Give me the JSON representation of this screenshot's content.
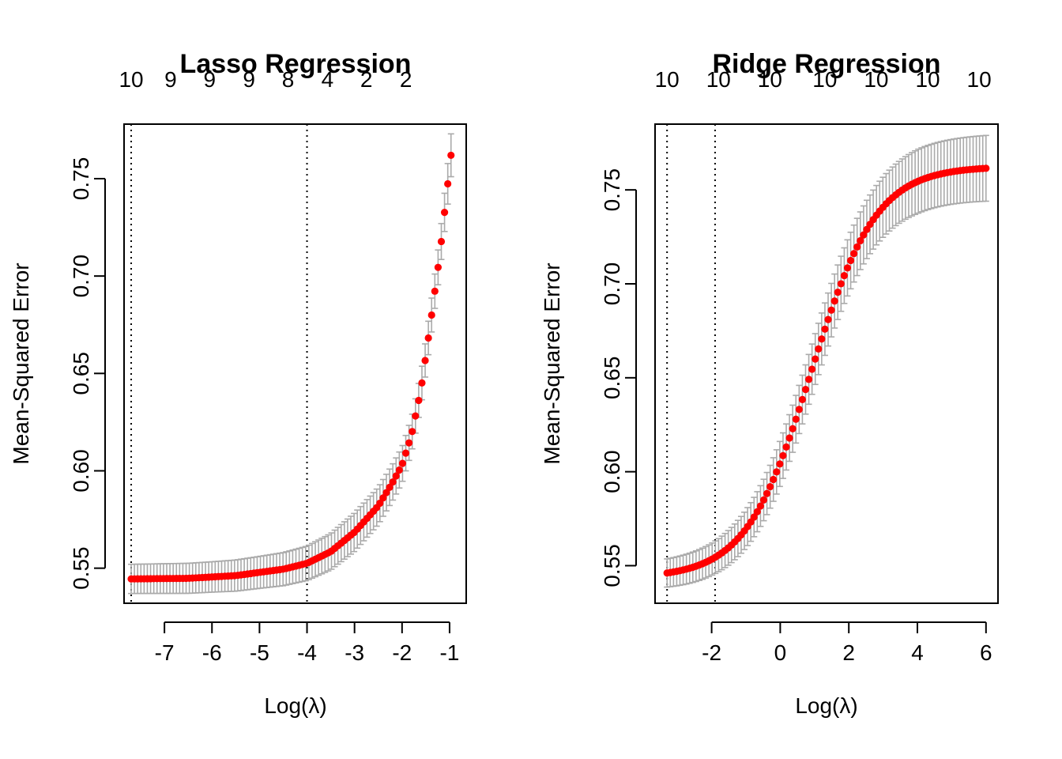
{
  "chart_data": [
    {
      "type": "scatter",
      "title": "Lasso Regression",
      "xlabel": "Log(λ)",
      "ylabel": "Mean-Squared Error",
      "xlim": [
        -7.85,
        -0.65
      ],
      "ylim": [
        0.532,
        0.778
      ],
      "x_ticks": [
        -7,
        -6,
        -5,
        -4,
        -3,
        -2,
        -1
      ],
      "y_ticks": [
        0.55,
        0.6,
        0.65,
        0.7,
        0.75
      ],
      "top_ticks": [
        {
          "x": -7.7,
          "label": "10"
        },
        {
          "x": -6.87,
          "label": "9"
        },
        {
          "x": -6.05,
          "label": "9"
        },
        {
          "x": -5.22,
          "label": "9"
        },
        {
          "x": -4.4,
          "label": "8"
        },
        {
          "x": -3.57,
          "label": "4"
        },
        {
          "x": -2.75,
          "label": "2"
        },
        {
          "x": -1.92,
          "label": "2"
        }
      ],
      "vlines": [
        -7.7,
        -4.0
      ],
      "points": {
        "x_start": -7.7,
        "x_end": -0.97,
        "count": 100
      },
      "curve_knots": [
        [
          -7.7,
          0.5445
        ],
        [
          -6.5,
          0.5448
        ],
        [
          -5.5,
          0.5462
        ],
        [
          -4.5,
          0.5495
        ],
        [
          -4.0,
          0.5525
        ],
        [
          -3.5,
          0.5585
        ],
        [
          -3.0,
          0.5685
        ],
        [
          -2.5,
          0.582
        ],
        [
          -2.2,
          0.594
        ],
        [
          -2.0,
          0.603
        ],
        [
          -1.8,
          0.6185
        ],
        [
          -1.6,
          0.642
        ],
        [
          -1.4,
          0.676
        ],
        [
          -1.2,
          0.712
        ],
        [
          -1.1,
          0.734
        ],
        [
          -0.97,
          0.762
        ]
      ],
      "error_knots": [
        [
          -7.7,
          0.0075
        ],
        [
          -6.0,
          0.0078
        ],
        [
          -5.0,
          0.0082
        ],
        [
          -4.0,
          0.0088
        ],
        [
          -3.0,
          0.0098
        ],
        [
          -2.0,
          0.0092
        ],
        [
          -1.5,
          0.0085
        ],
        [
          -1.2,
          0.009
        ],
        [
          -0.97,
          0.011
        ]
      ],
      "point_color": "#ff0000",
      "errorbar_color": "#aaaaaa"
    },
    {
      "type": "scatter",
      "title": "Ridge Regression",
      "xlabel": "Log(λ)",
      "ylabel": "Mean-Squared Error",
      "xlim": [
        -3.65,
        6.35
      ],
      "ylim": [
        0.53,
        0.785
      ],
      "x_ticks": [
        -2,
        0,
        2,
        4,
        6
      ],
      "y_ticks": [
        0.55,
        0.6,
        0.65,
        0.7,
        0.75
      ],
      "top_ticks": [
        {
          "x": -3.3,
          "label": "10"
        },
        {
          "x": -1.8,
          "label": "10"
        },
        {
          "x": -0.3,
          "label": "10"
        },
        {
          "x": 1.3,
          "label": "10"
        },
        {
          "x": 2.8,
          "label": "10"
        },
        {
          "x": 4.3,
          "label": "10"
        },
        {
          "x": 5.8,
          "label": "10"
        }
      ],
      "vlines": [
        -3.3,
        -1.9
      ],
      "points": {
        "x_start": -3.3,
        "x_end": 6.0,
        "count": 100
      },
      "logistic": {
        "min": 0.5435,
        "max": 0.7625,
        "mid": 0.9,
        "scale": 0.95
      },
      "error_knots": [
        [
          -3.3,
          0.0075
        ],
        [
          -2.0,
          0.0085
        ],
        [
          -1.0,
          0.01
        ],
        [
          0.0,
          0.012
        ],
        [
          1.0,
          0.0135
        ],
        [
          2.0,
          0.015
        ],
        [
          3.0,
          0.016
        ],
        [
          4.0,
          0.017
        ],
        [
          6.0,
          0.0175
        ]
      ],
      "point_color": "#ff0000",
      "errorbar_color": "#aaaaaa"
    }
  ]
}
